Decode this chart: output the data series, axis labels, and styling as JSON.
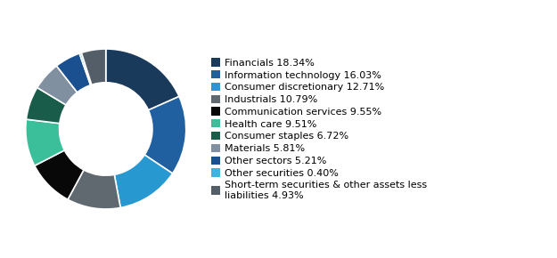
{
  "labels": [
    "Financials 18.34%",
    "Information technology 16.03%",
    "Consumer discretionary 12.71%",
    "Industrials 10.79%",
    "Communication services 9.55%",
    "Health care 9.51%",
    "Consumer staples 6.72%",
    "Materials 5.81%",
    "Other sectors 5.21%",
    "Other securities 0.40%",
    "Short-term securities & other assets less\nliabilities 4.93%"
  ],
  "values": [
    18.34,
    16.03,
    12.71,
    10.79,
    9.55,
    9.51,
    6.72,
    5.81,
    5.21,
    0.4,
    4.93
  ],
  "colors": [
    "#1a3a5c",
    "#2060a0",
    "#2898d0",
    "#606870",
    "#080808",
    "#3abf9a",
    "#1a5c4a",
    "#8090a0",
    "#1a5090",
    "#38b8e0",
    "#545e68"
  ],
  "background_color": "#ffffff",
  "wedge_linewidth": 1.2,
  "wedge_linecolor": "#ffffff",
  "donut_width": 0.42,
  "legend_fontsize": 8.0,
  "startangle": 90
}
